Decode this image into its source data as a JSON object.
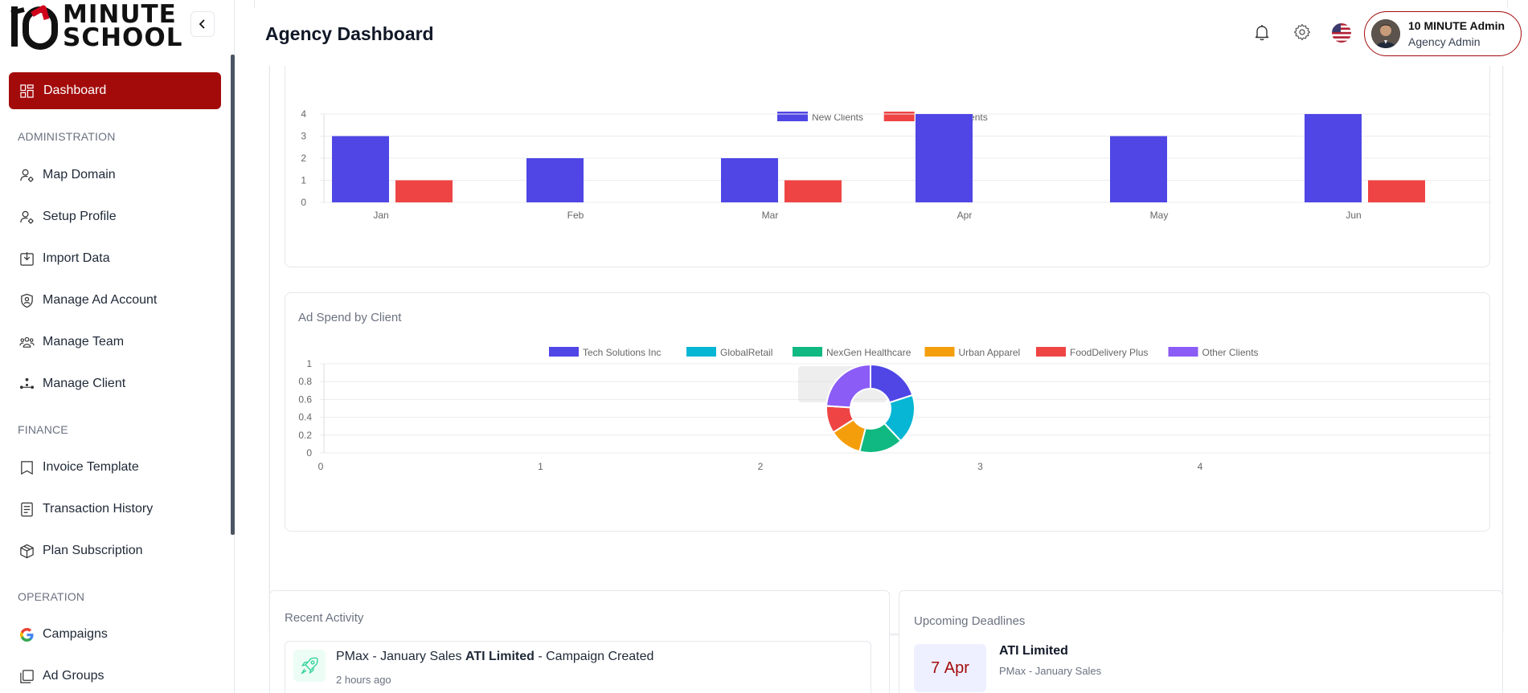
{
  "brand": {
    "logo_digits": "10",
    "logo_line1": "MINUTE",
    "logo_line2": "SCHOOL",
    "accent": "#a30b0b"
  },
  "sidebar": {
    "active_item": "Dashboard",
    "sections": {
      "administration": "ADMINISTRATION",
      "finance": "FINANCE",
      "operation": "OPERATION"
    },
    "administration_items": [
      "Map Domain",
      "Setup Profile",
      "Import Data",
      "Manage Ad Account",
      "Manage Team",
      "Manage Client"
    ],
    "finance_items": [
      "Invoice Template",
      "Transaction History",
      "Plan Subscription"
    ],
    "operation_items": [
      "Campaigns",
      "Ad Groups"
    ]
  },
  "header": {
    "title": "Agency Dashboard",
    "user_name": "10 MINUTE Admin",
    "user_role": "Agency Admin"
  },
  "chart_data": [
    {
      "type": "bar",
      "title": "",
      "categories": [
        "Jan",
        "Feb",
        "Mar",
        "Apr",
        "May",
        "Jun"
      ],
      "series": [
        {
          "name": "New Clients",
          "color": "#4f46e5",
          "values": [
            3,
            2,
            2,
            4,
            3,
            4
          ]
        },
        {
          "name": "Churned Clients",
          "color": "#ef4444",
          "values": [
            1,
            0,
            1,
            0,
            0,
            1
          ]
        }
      ],
      "ylim": [
        0,
        4
      ],
      "yticks": [
        "0",
        "1",
        "2",
        "3",
        "4"
      ],
      "legend": "top-center",
      "grid": true
    },
    {
      "type": "pie",
      "title": "Ad Spend by Client",
      "labels": [
        "Tech Solutions Inc",
        "GlobalRetail",
        "NexGen Healthcare",
        "Urban Apparel",
        "FoodDelivery Plus",
        "Other Clients"
      ],
      "colors": [
        "#4f46e5",
        "#06b6d4",
        "#10b981",
        "#f59e0b",
        "#ef4444",
        "#8b5cf6"
      ],
      "values": [
        20,
        18,
        16,
        12,
        10,
        24
      ],
      "yticks": [
        "0",
        "0.2",
        "0.4",
        "0.6",
        "0.8",
        "1"
      ],
      "xticks": [
        "0",
        "1",
        "2",
        "3",
        "4"
      ],
      "legend": "top-center"
    }
  ],
  "recent_activity": {
    "title": "Recent Activity",
    "item_prefix": "PMax - January Sales",
    "item_company": "ATI Limited",
    "item_suffix": "- Campaign Created",
    "item_time": "2 hours ago"
  },
  "deadlines": {
    "title": "Upcoming Deadlines",
    "date_day": "7",
    "date_month": "Apr",
    "company": "ATI Limited",
    "campaign": "PMax - January Sales"
  }
}
